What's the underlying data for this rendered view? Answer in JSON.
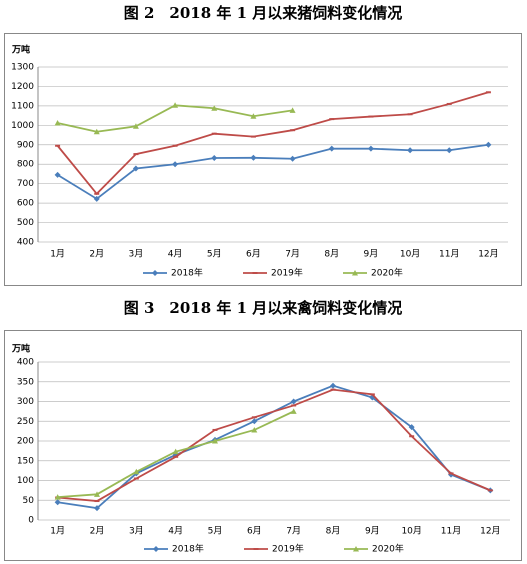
{
  "chart_data": [
    {
      "type": "line",
      "title": "图 2　2018 年 1 月以来猪饲料变化情况",
      "y_label": "万吨",
      "categories": [
        "1月",
        "2月",
        "3月",
        "4月",
        "5月",
        "6月",
        "7月",
        "8月",
        "9月",
        "10月",
        "11月",
        "12月"
      ],
      "ylim": [
        400,
        1300
      ],
      "yticks": [
        400,
        500,
        600,
        700,
        800,
        900,
        1000,
        1100,
        1200,
        1300
      ],
      "grid": true,
      "series": [
        {
          "name": "2018年",
          "color": "#4a7ebb",
          "marker": "diamond",
          "values": [
            745,
            622,
            778,
            800,
            832,
            833,
            828,
            880,
            880,
            872,
            872,
            900
          ]
        },
        {
          "name": "2019年",
          "color": "#be4b48",
          "marker": "dash",
          "values": [
            895,
            648,
            852,
            895,
            957,
            942,
            975,
            1032,
            1045,
            1057,
            1110,
            1170
          ]
        },
        {
          "name": "2020年",
          "color": "#98b954",
          "marker": "triangle",
          "values": [
            1012,
            967,
            995,
            1103,
            1088,
            1047,
            1077,
            null,
            null,
            null,
            null,
            null
          ]
        }
      ]
    },
    {
      "type": "line",
      "title": "图 3　2018 年 1 月以来禽饲料变化情况",
      "y_label": "万吨",
      "categories": [
        "1月",
        "2月",
        "3月",
        "4月",
        "5月",
        "6月",
        "7月",
        "8月",
        "9月",
        "10月",
        "11月",
        "12月"
      ],
      "ylim": [
        0,
        400
      ],
      "yticks": [
        0,
        50,
        100,
        150,
        200,
        250,
        300,
        350,
        400
      ],
      "grid": true,
      "series": [
        {
          "name": "2018年",
          "color": "#4a7ebb",
          "marker": "diamond",
          "values": [
            45,
            30,
            118,
            165,
            203,
            250,
            300,
            340,
            310,
            235,
            115,
            75
          ]
        },
        {
          "name": "2019年",
          "color": "#be4b48",
          "marker": "dash",
          "values": [
            57,
            48,
            105,
            160,
            228,
            260,
            290,
            330,
            318,
            212,
            118,
            75
          ]
        },
        {
          "name": "2020年",
          "color": "#98b954",
          "marker": "triangle",
          "values": [
            58,
            65,
            122,
            173,
            200,
            228,
            275,
            null,
            null,
            null,
            null,
            null
          ]
        }
      ]
    }
  ]
}
